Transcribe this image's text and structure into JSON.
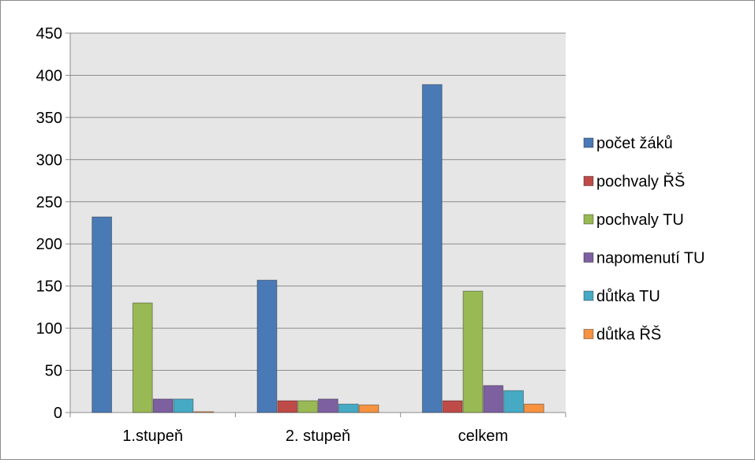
{
  "chart_data": {
    "type": "bar",
    "categories": [
      "1.stupeň",
      "2. stupeň",
      "celkem"
    ],
    "series": [
      {
        "name": "počet žáků",
        "values": [
          232,
          157,
          389
        ],
        "color": "#4a7ab6"
      },
      {
        "name": "pochvaly ŘŠ",
        "values": [
          0,
          14,
          14
        ],
        "color": "#be4b48"
      },
      {
        "name": "pochvaly TU",
        "values": [
          130,
          14,
          144
        ],
        "color": "#98b954"
      },
      {
        "name": "napomenutí TU",
        "values": [
          16,
          16,
          32
        ],
        "color": "#7d60a0"
      },
      {
        "name": "důtka TU",
        "values": [
          16,
          10,
          26
        ],
        "color": "#46aac5"
      },
      {
        "name": "důtka ŘŠ",
        "values": [
          1,
          9,
          10
        ],
        "color": "#f69240"
      }
    ],
    "ylim": [
      0,
      450
    ],
    "yticks": [
      0,
      50,
      100,
      150,
      200,
      250,
      300,
      350,
      400,
      450
    ],
    "grid": true,
    "legend": "right",
    "plot_background": "#e6e6e6"
  }
}
